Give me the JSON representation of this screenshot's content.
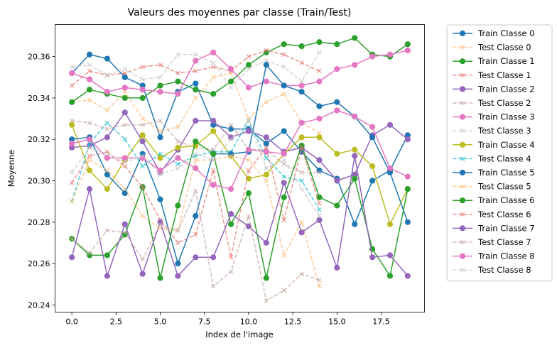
{
  "chart_data": {
    "type": "line",
    "title": "Valeurs des moyennes par classe (Train/Test)",
    "xlabel": "Index de l'image",
    "ylabel": "Moyenne",
    "xlim": [
      -0.95,
      19.95
    ],
    "ylim": [
      20.2365,
      20.3755
    ],
    "xticks": [
      0.0,
      2.5,
      5.0,
      7.5,
      10.0,
      12.5,
      15.0,
      17.5
    ],
    "xtick_labels": [
      "0.0",
      "2.5",
      "5.0",
      "7.5",
      "10.0",
      "12.5",
      "15.0",
      "17.5"
    ],
    "yticks": [
      20.24,
      20.26,
      20.28,
      20.3,
      20.32,
      20.34,
      20.36
    ],
    "ytick_labels": [
      "20.24",
      "20.26",
      "20.28",
      "20.30",
      "20.32",
      "20.34",
      "20.36"
    ],
    "grid": false,
    "legend_position": "outside right",
    "series": [
      {
        "name": "Train Classe 0",
        "style": "solid",
        "marker": "circle",
        "color": "#1f77b4",
        "x": [
          0,
          1,
          2,
          3,
          4,
          5,
          6,
          7,
          8,
          9,
          10,
          11,
          12,
          13,
          14,
          15,
          16,
          17,
          18,
          19
        ],
        "y": [
          20.352,
          20.361,
          20.359,
          20.35,
          20.346,
          20.321,
          20.343,
          20.347,
          20.327,
          20.325,
          20.325,
          20.318,
          20.324,
          20.314,
          20.305,
          20.301,
          20.279,
          20.3,
          20.305,
          20.322
        ]
      },
      {
        "name": "Test Classe 0",
        "style": "dashed",
        "marker": "x",
        "color": "#ffbb78",
        "x": [
          0,
          1,
          2,
          3,
          4,
          5,
          6,
          7,
          8,
          9,
          10,
          11,
          12,
          13,
          14
        ],
        "y": [
          20.338,
          20.339,
          20.334,
          20.343,
          20.33,
          20.324,
          20.326,
          20.34,
          20.35,
          20.352,
          20.33,
          20.338,
          20.342,
          20.328,
          20.323
        ]
      },
      {
        "name": "Train Classe 1",
        "style": "solid",
        "marker": "circle",
        "color": "#2ca02c",
        "x": [
          0,
          1,
          2,
          3,
          4,
          5,
          6,
          7,
          8,
          9,
          10,
          11,
          12,
          13,
          14,
          15,
          16,
          17,
          18,
          19
        ],
        "y": [
          20.338,
          20.344,
          20.342,
          20.34,
          20.34,
          20.346,
          20.348,
          20.344,
          20.342,
          20.348,
          20.356,
          20.362,
          20.366,
          20.365,
          20.367,
          20.366,
          20.369,
          20.361,
          20.36,
          20.366
        ]
      },
      {
        "name": "Test Classe 1",
        "style": "dashed",
        "marker": "x",
        "color": "#e6746c",
        "x": [
          0,
          1,
          2,
          3,
          4,
          5,
          6,
          7,
          8,
          9,
          10,
          11,
          12,
          13,
          14
        ],
        "y": [
          20.346,
          20.353,
          20.351,
          20.352,
          20.355,
          20.356,
          20.352,
          20.353,
          20.355,
          20.353,
          20.36,
          20.363,
          20.361,
          20.357,
          20.353
        ]
      },
      {
        "name": "Train Classe 2",
        "style": "solid",
        "marker": "circle",
        "color": "#9467bd",
        "x": [
          0,
          1,
          2,
          3,
          4,
          5,
          6,
          7,
          8,
          9,
          10,
          11,
          12,
          13,
          14,
          15,
          16,
          17,
          18,
          19
        ],
        "y": [
          20.316,
          20.317,
          20.321,
          20.333,
          20.319,
          20.304,
          20.315,
          20.329,
          20.329,
          20.321,
          20.324,
          20.321,
          20.314,
          20.316,
          20.31,
          20.3,
          20.303,
          20.322,
          20.327,
          20.32
        ]
      },
      {
        "name": "Test Classe 2",
        "style": "dashed",
        "marker": "x",
        "color": "#c5a6a0",
        "x": [
          0,
          1,
          2,
          3,
          4,
          5,
          6,
          7,
          8,
          9,
          10,
          11,
          12,
          13,
          14
        ],
        "y": [
          20.329,
          20.328,
          20.325,
          20.327,
          20.327,
          20.329,
          20.319,
          20.316,
          20.315,
          20.327,
          20.315,
          20.315,
          20.308,
          20.304,
          20.304
        ]
      },
      {
        "name": "Train Classe 3",
        "style": "solid",
        "marker": "circle",
        "color": "#e377c2",
        "x": [
          0,
          1,
          2,
          3,
          4,
          5,
          6,
          7,
          8,
          9,
          10,
          11,
          12,
          13,
          14,
          15,
          16,
          17,
          18,
          19
        ],
        "y": [
          20.352,
          20.349,
          20.343,
          20.345,
          20.344,
          20.343,
          20.342,
          20.358,
          20.362,
          20.354,
          20.345,
          20.348,
          20.346,
          20.346,
          20.348,
          20.354,
          20.356,
          20.36,
          20.361,
          20.363
        ]
      },
      {
        "name": "Test Classe 3",
        "style": "dashed",
        "marker": "x",
        "color": "#c7c7c7",
        "x": [
          0,
          1,
          2,
          3,
          4,
          5,
          6,
          7,
          8,
          9,
          10,
          11,
          12,
          13,
          14
        ],
        "y": [
          20.355,
          20.356,
          20.351,
          20.354,
          20.349,
          20.35,
          20.361,
          20.361,
          20.357,
          20.345,
          20.354,
          20.358,
          20.355,
          20.348,
          20.362
        ]
      },
      {
        "name": "Train Classe 4",
        "style": "solid",
        "marker": "circle",
        "color": "#bcbd22",
        "x": [
          0,
          1,
          2,
          3,
          4,
          5,
          6,
          7,
          8,
          9,
          10,
          11,
          12,
          13,
          14,
          15,
          16,
          17,
          18,
          19
        ],
        "y": [
          20.327,
          20.305,
          20.296,
          20.31,
          20.322,
          20.311,
          20.316,
          20.317,
          20.324,
          20.312,
          20.301,
          20.303,
          20.313,
          20.321,
          20.321,
          20.313,
          20.315,
          20.307,
          20.279,
          20.296
        ]
      },
      {
        "name": "Test Classe 4",
        "style": "dashed",
        "marker": "x",
        "color": "#17becf",
        "x": [
          0,
          1,
          2,
          3,
          4,
          5,
          6,
          7,
          8,
          9,
          10,
          11,
          12,
          13,
          14
        ],
        "y": [
          20.29,
          20.318,
          20.328,
          20.32,
          20.307,
          20.313,
          20.308,
          20.312,
          20.314,
          20.314,
          20.329,
          20.311,
          20.302,
          20.3,
          20.286
        ]
      },
      {
        "name": "Train Classe 5",
        "style": "solid",
        "marker": "circle",
        "color": "#1f77b4",
        "x": [
          0,
          1,
          2,
          3,
          4,
          5,
          6,
          7,
          8,
          9,
          10,
          11,
          12,
          13,
          14,
          15,
          16,
          17,
          18,
          19
        ],
        "y": [
          20.32,
          20.321,
          20.303,
          20.294,
          20.313,
          20.291,
          20.26,
          20.283,
          20.313,
          20.313,
          20.314,
          20.356,
          20.346,
          20.343,
          20.336,
          20.338,
          20.331,
          20.321,
          20.304,
          20.28
        ]
      },
      {
        "name": "Test Classe 5",
        "style": "dashed",
        "marker": "x",
        "color": "#ffbb78",
        "x": [
          0,
          1,
          2,
          3,
          4,
          5,
          6,
          7,
          8,
          9,
          10,
          11,
          12,
          13,
          14
        ],
        "y": [
          20.29,
          20.31,
          20.305,
          20.296,
          20.283,
          20.277,
          20.276,
          20.31,
          20.31,
          20.312,
          20.31,
          20.3,
          20.264,
          20.28,
          20.249
        ]
      },
      {
        "name": "Train Classe 6",
        "style": "solid",
        "marker": "circle",
        "color": "#2ca02c",
        "x": [
          0,
          1,
          2,
          3,
          4,
          5,
          6,
          7,
          8,
          9,
          10,
          11,
          12,
          13,
          14,
          15,
          16,
          17,
          18,
          19
        ],
        "y": [
          20.272,
          20.264,
          20.264,
          20.274,
          20.297,
          20.253,
          20.288,
          20.319,
          20.313,
          20.279,
          20.294,
          20.253,
          20.292,
          20.317,
          20.292,
          20.288,
          20.301,
          20.267,
          20.254,
          20.296
        ]
      },
      {
        "name": "Test Classe 6",
        "style": "dashed",
        "marker": "x",
        "color": "#e6746c",
        "x": [
          0,
          1,
          2,
          3,
          4,
          5,
          6,
          7,
          8,
          9,
          10,
          11,
          12,
          13,
          14
        ],
        "y": [
          20.299,
          20.312,
          20.314,
          20.307,
          20.297,
          20.281,
          20.27,
          20.274,
          20.305,
          20.263,
          20.305,
          20.316,
          20.281,
          20.316,
          20.289
        ]
      },
      {
        "name": "Train Classe 7",
        "style": "solid",
        "marker": "circle",
        "color": "#9467bd",
        "x": [
          0,
          1,
          2,
          3,
          4,
          5,
          6,
          7,
          8,
          9,
          10,
          11,
          12,
          13,
          14,
          15,
          16,
          17,
          18,
          19
        ],
        "y": [
          20.263,
          20.296,
          20.254,
          20.279,
          20.255,
          20.28,
          20.254,
          20.263,
          20.263,
          20.284,
          20.278,
          20.27,
          20.299,
          20.275,
          20.281,
          20.258,
          20.312,
          20.263,
          20.264,
          20.254
        ]
      },
      {
        "name": "Test Classe 7",
        "style": "dashed",
        "marker": "x",
        "color": "#c5a6a0",
        "x": [
          0,
          1,
          2,
          3,
          4,
          5,
          6,
          7,
          8,
          9,
          10,
          11,
          12,
          13,
          14
        ],
        "y": [
          20.272,
          20.265,
          20.276,
          20.275,
          20.262,
          20.279,
          20.276,
          20.295,
          20.249,
          20.256,
          20.283,
          20.242,
          20.247,
          20.255,
          20.252
        ]
      },
      {
        "name": "Train Classe 8",
        "style": "solid",
        "marker": "circle",
        "color": "#e377c2",
        "x": [
          0,
          1,
          2,
          3,
          4,
          5,
          6,
          7,
          8,
          9,
          10,
          11,
          12,
          13,
          14,
          15,
          16,
          17,
          18,
          19
        ],
        "y": [
          20.318,
          20.32,
          20.311,
          20.311,
          20.311,
          20.305,
          20.311,
          20.306,
          20.298,
          20.296,
          20.315,
          20.314,
          20.313,
          20.328,
          20.33,
          20.334,
          20.331,
          20.326,
          20.306,
          20.302
        ]
      },
      {
        "name": "Test Classe 8",
        "style": "dashed",
        "marker": "x",
        "color": "#c7c7c7",
        "x": [
          0,
          1,
          2,
          3,
          4,
          5,
          6,
          7,
          8,
          9,
          10,
          11,
          12,
          13,
          14
        ],
        "y": [
          20.304,
          20.316,
          20.313,
          20.309,
          20.312,
          20.303,
          20.306,
          20.313,
          20.31,
          20.32,
          20.329,
          20.306,
          20.31,
          20.296,
          20.283
        ]
      }
    ]
  }
}
